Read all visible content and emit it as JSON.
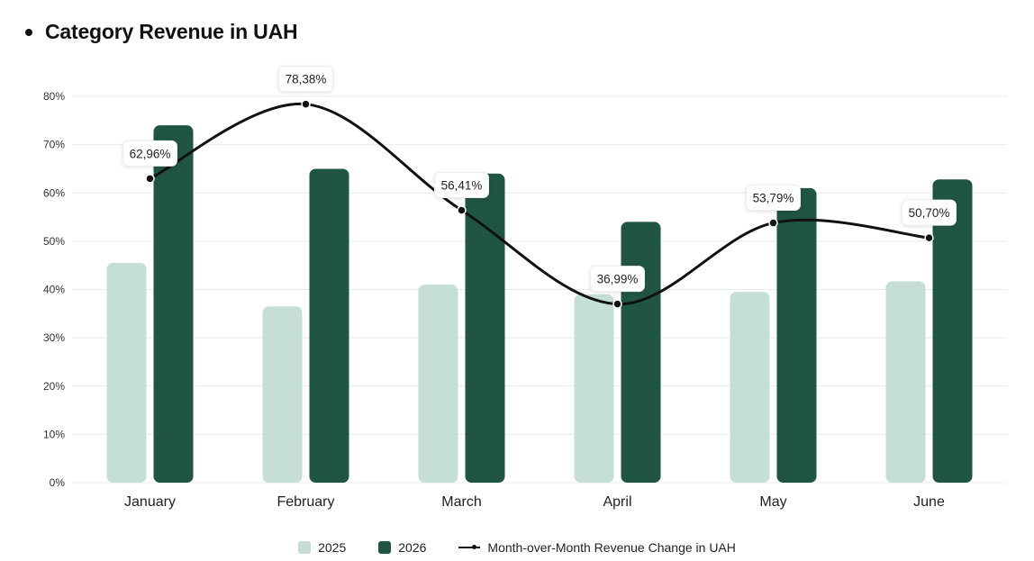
{
  "title": "Category Revenue in UAH",
  "colors": {
    "s2025": "#c5dfd6",
    "s2026": "#205443",
    "line": "#111111",
    "grid": "#e8ecea"
  },
  "legend": {
    "s2025": "2025",
    "s2026": "2026",
    "line": "Month-over-Month Revenue Change in UAH"
  },
  "chart_data": {
    "type": "bar",
    "title": "Category Revenue in UAH",
    "categories": [
      "January",
      "February",
      "March",
      "April",
      "May",
      "June"
    ],
    "ylim": [
      0,
      80
    ],
    "yticks": [
      "0%",
      "10%",
      "20%",
      "30%",
      "40%",
      "50%",
      "60%",
      "70%",
      "80%"
    ],
    "grid": true,
    "legend_position": "bottom",
    "series": [
      {
        "name": "2025",
        "type": "bar",
        "values": [
          45.5,
          36.5,
          41,
          39,
          39.5,
          41.7
        ]
      },
      {
        "name": "2026",
        "type": "bar",
        "values": [
          74,
          65,
          64,
          54,
          61,
          62.8
        ]
      },
      {
        "name": "Month-over-Month Revenue Change in UAH",
        "type": "line",
        "values": [
          62.96,
          78.38,
          56.41,
          36.99,
          53.79,
          50.7
        ],
        "labels": [
          "62,96%",
          "78,38%",
          "56,41%",
          "36,99%",
          "53,79%",
          "50,70%"
        ]
      }
    ]
  }
}
